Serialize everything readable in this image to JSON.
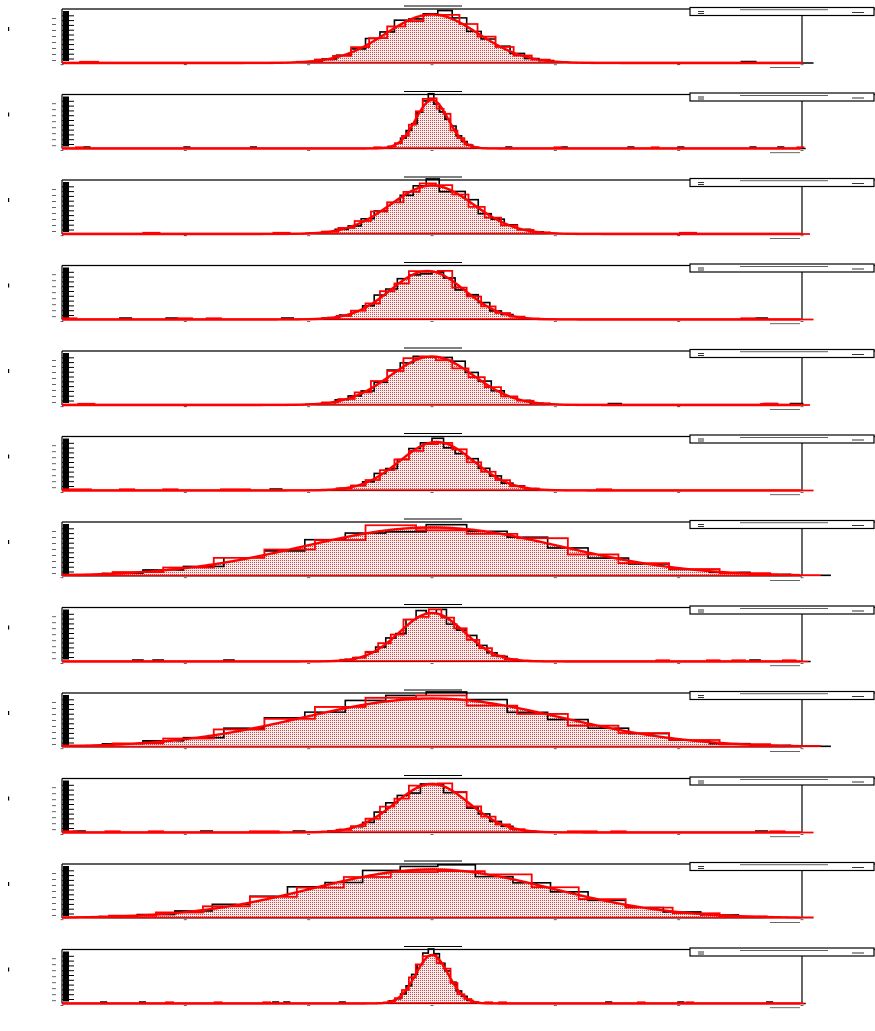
{
  "colors": {
    "data": "#000000",
    "model": "#ff0000",
    "fill": "#f2caca"
  },
  "chart_data": [
    {
      "type": "histogram",
      "title": "",
      "mode": "broad",
      "mu": 0,
      "sigma": 1.0
    },
    {
      "type": "histogram",
      "title": "",
      "mode": "narrow",
      "mu": 0,
      "sigma": 0.35
    },
    {
      "type": "histogram",
      "title": "",
      "mode": "broad",
      "mu": 0,
      "sigma": 0.9
    },
    {
      "type": "histogram",
      "title": "",
      "mode": "broad",
      "mu": -0.1,
      "sigma": 0.8
    },
    {
      "type": "histogram",
      "title": "",
      "mode": "broad",
      "mu": 0,
      "sigma": 0.9
    },
    {
      "type": "histogram",
      "title": "",
      "mode": "broad",
      "mu": 0.1,
      "sigma": 0.8
    },
    {
      "type": "histogram",
      "title": "",
      "mode": "wide",
      "mu": 0,
      "sigma": 2.8
    },
    {
      "type": "histogram",
      "title": "",
      "mode": "broad",
      "mu": 0,
      "sigma": 0.7
    },
    {
      "type": "histogram",
      "title": "",
      "mode": "wide",
      "mu": 0,
      "sigma": 2.8
    },
    {
      "type": "histogram",
      "title": "",
      "mode": "broad",
      "mu": 0,
      "sigma": 0.8
    },
    {
      "type": "histogram",
      "title": "",
      "mode": "wide",
      "mu": 0,
      "sigma": 2.6
    },
    {
      "type": "histogram",
      "title": "",
      "mode": "narrow",
      "mu": 0,
      "sigma": 0.35
    }
  ]
}
